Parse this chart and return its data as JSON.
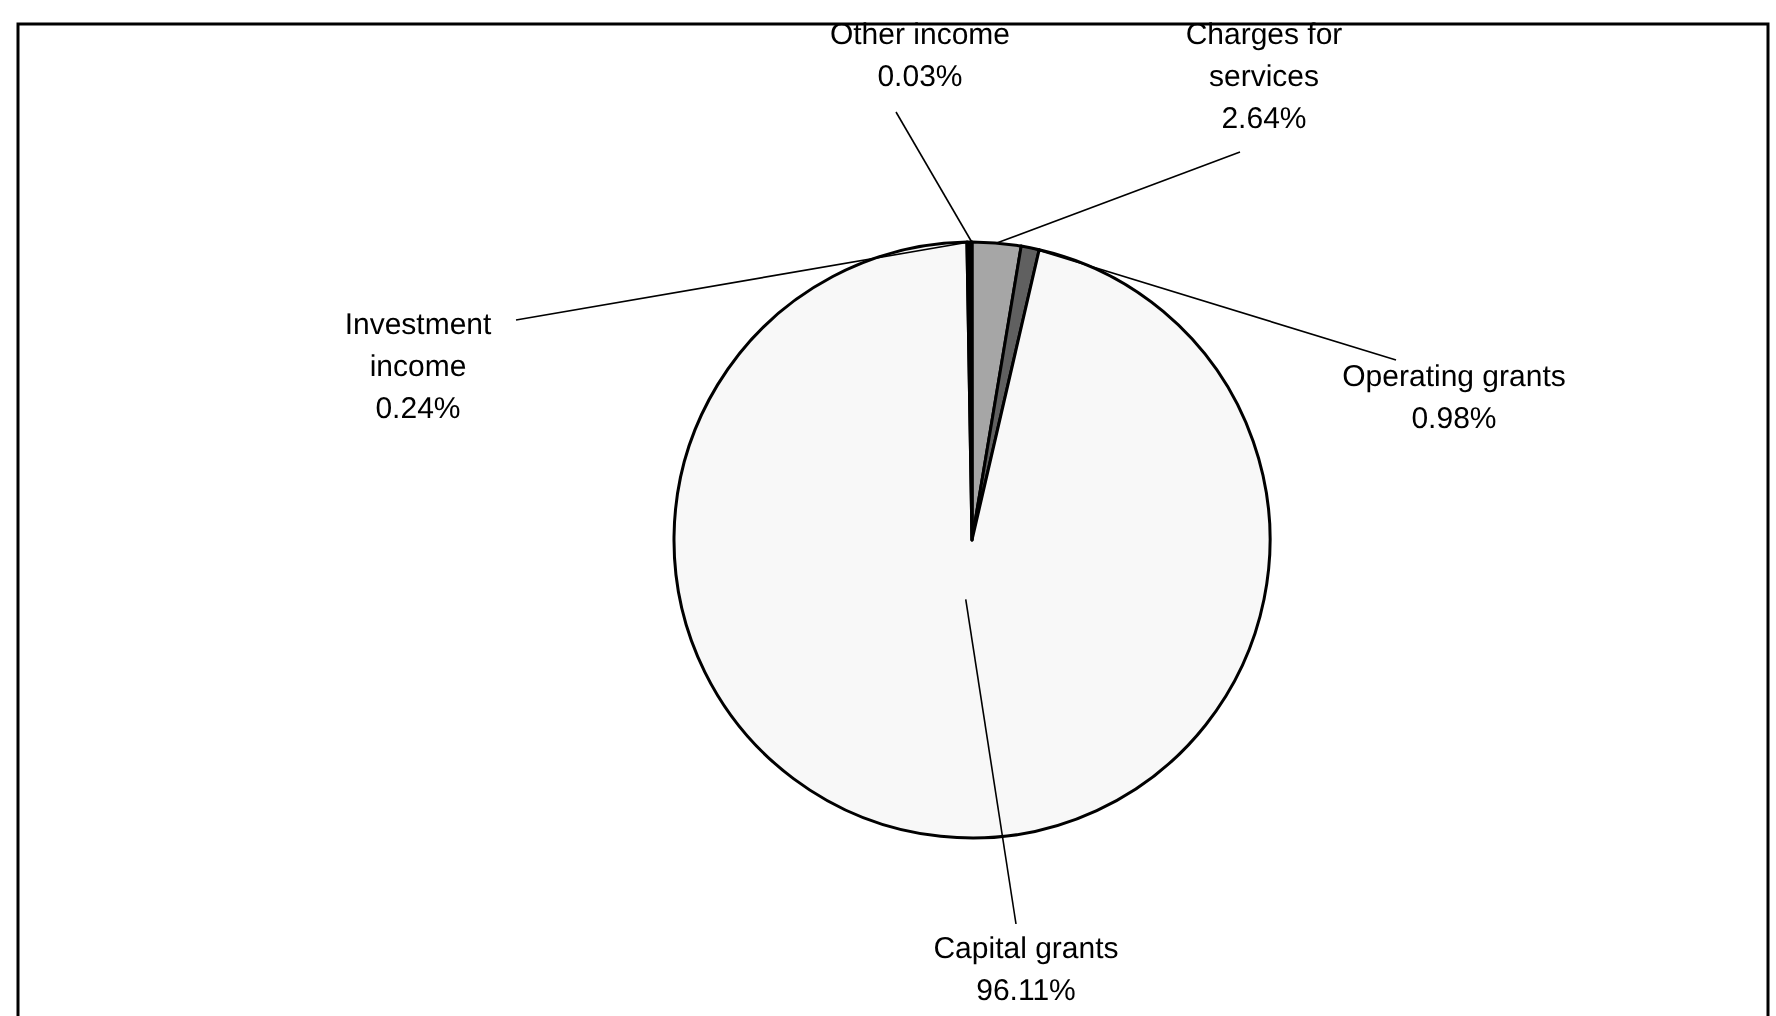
{
  "chart_data": {
    "type": "pie",
    "categories": [
      "Charges for services",
      "Operating grants",
      "Capital grants",
      "Investment income",
      "Other income"
    ],
    "values": [
      2.64,
      0.98,
      96.11,
      0.24,
      0.03
    ],
    "colors": [
      "#a6a6a6",
      "#606060",
      "#f8f8f8",
      "#000000",
      "#ffffff"
    ],
    "value_labels": [
      "2.64%",
      "0.98%",
      "96.11%",
      "0.24%",
      "0.03%"
    ]
  }
}
